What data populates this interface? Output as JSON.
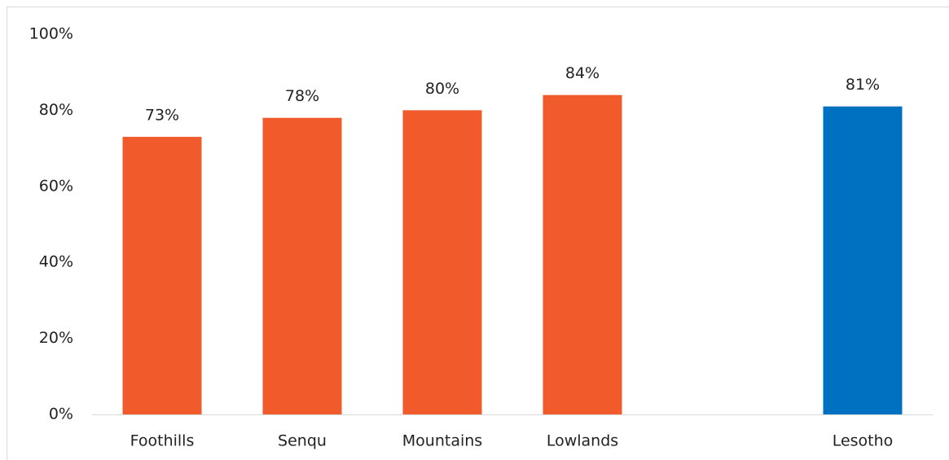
{
  "chart_data": {
    "type": "bar",
    "categories": [
      "Foothills",
      "Senqu",
      "Mountains",
      "Lowlands",
      null,
      "Lesotho"
    ],
    "values": [
      73,
      78,
      80,
      84,
      null,
      81
    ],
    "value_labels": [
      "73%",
      "78%",
      "80%",
      "84%",
      null,
      "81%"
    ],
    "colors": [
      "#f15a2b",
      "#f15a2b",
      "#f15a2b",
      "#f15a2b",
      null,
      "#0070c0"
    ],
    "ylim": [
      0,
      100
    ],
    "yticks": [
      {
        "value": 0,
        "label": "0%"
      },
      {
        "value": 20,
        "label": "20%"
      },
      {
        "value": 40,
        "label": "40%"
      },
      {
        "value": 60,
        "label": "60%"
      },
      {
        "value": 80,
        "label": "80%"
      },
      {
        "value": 100,
        "label": "100%"
      }
    ],
    "grid": false
  }
}
